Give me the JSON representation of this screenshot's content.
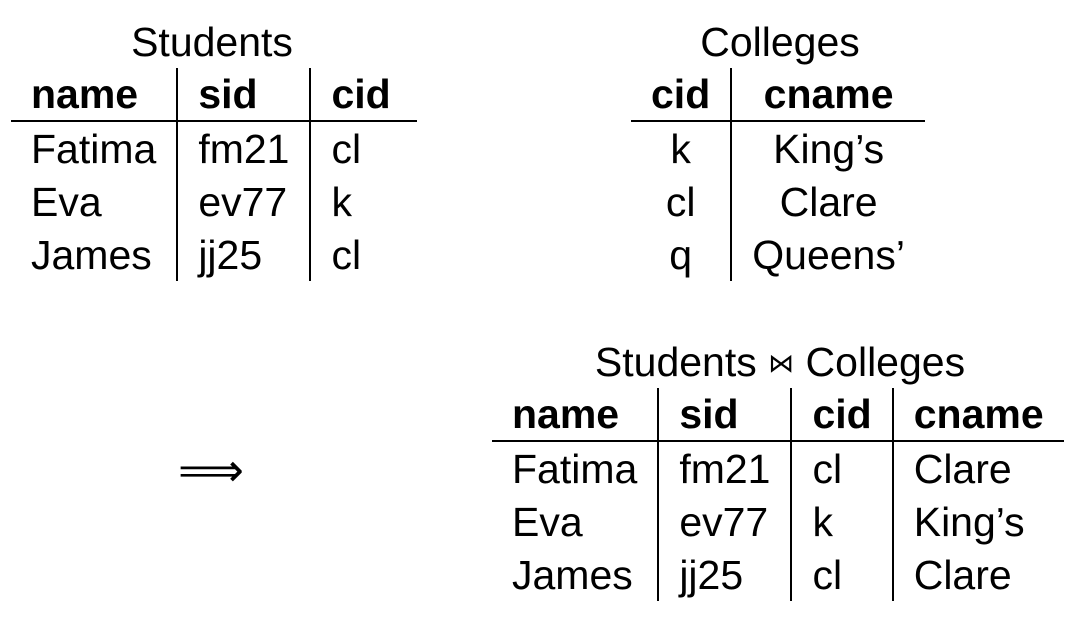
{
  "students": {
    "title": "Students",
    "columns": [
      "name",
      "sid",
      "cid"
    ],
    "rows": [
      [
        "Fatima",
        "fm21",
        "cl"
      ],
      [
        "Eva",
        "ev77",
        "k"
      ],
      [
        "James",
        "jj25",
        "cl"
      ]
    ]
  },
  "colleges": {
    "title": "Colleges",
    "columns": [
      "cid",
      "cname"
    ],
    "rows": [
      [
        "k",
        "King’s"
      ],
      [
        "cl",
        "Clare"
      ],
      [
        "q",
        "Queens’"
      ]
    ]
  },
  "implies_symbol": "⟹",
  "join": {
    "title_left": "Students",
    "operator": "⋈",
    "title_right": "Colleges",
    "columns": [
      "name",
      "sid",
      "cid",
      "cname"
    ],
    "rows": [
      [
        "Fatima",
        "fm21",
        "cl",
        "Clare"
      ],
      [
        "Eva",
        "ev77",
        "k",
        "King’s"
      ],
      [
        "James",
        "jj25",
        "cl",
        "Clare"
      ]
    ]
  }
}
